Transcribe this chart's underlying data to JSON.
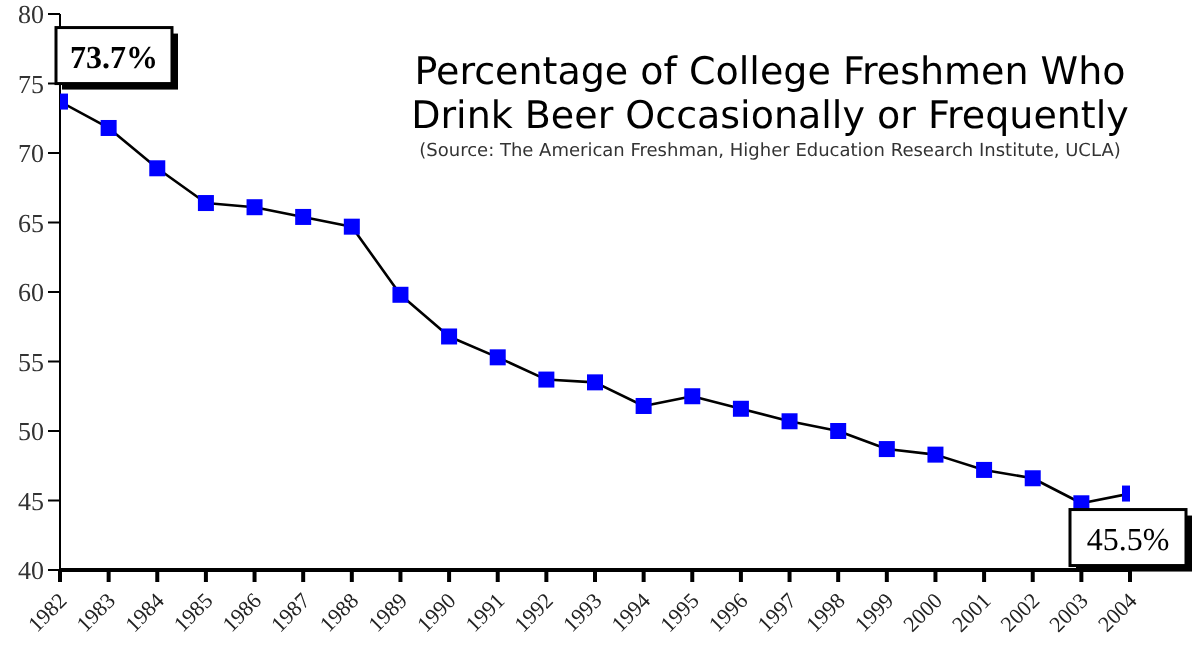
{
  "chart_data": {
    "type": "line",
    "title": "Percentage of College Freshmen Who Drink Beer Occasionally or Frequently",
    "subtitle": "(Source:  The American Freshman, Higher Education Research Institute, UCLA)",
    "x": [
      1982,
      1983,
      1984,
      1985,
      1986,
      1987,
      1988,
      1989,
      1990,
      1991,
      1992,
      1993,
      1994,
      1995,
      1996,
      1997,
      1998,
      1999,
      2000,
      2001,
      2002,
      2003,
      2004
    ],
    "series": [
      {
        "color": "#0000ff",
        "values": [
          73.7,
          71.8,
          68.9,
          66.4,
          66.1,
          65.4,
          64.7,
          59.8,
          56.8,
          55.3,
          53.7,
          53.5,
          51.8,
          52.5,
          51.6,
          50.7,
          50.0,
          48.7,
          48.3,
          47.2,
          46.6,
          44.8,
          45.5
        ]
      }
    ],
    "xlim": [
      1982,
      2004
    ],
    "xticks": [
      1982,
      1983,
      1984,
      1985,
      1986,
      1987,
      1988,
      1989,
      1990,
      1991,
      1992,
      1993,
      1994,
      1995,
      1996,
      1997,
      1998,
      1999,
      2000,
      2001,
      2002,
      2003,
      2004
    ],
    "ylim": [
      40,
      80
    ],
    "yticks": [
      40,
      45,
      50,
      55,
      60,
      65,
      70,
      75,
      80
    ],
    "marker": "square",
    "grid": false,
    "annotations": [
      {
        "text": "73.7%",
        "x": 1982,
        "y": 73.7
      },
      {
        "text": "45.5%",
        "x": 2004,
        "y": 45.5
      }
    ]
  }
}
